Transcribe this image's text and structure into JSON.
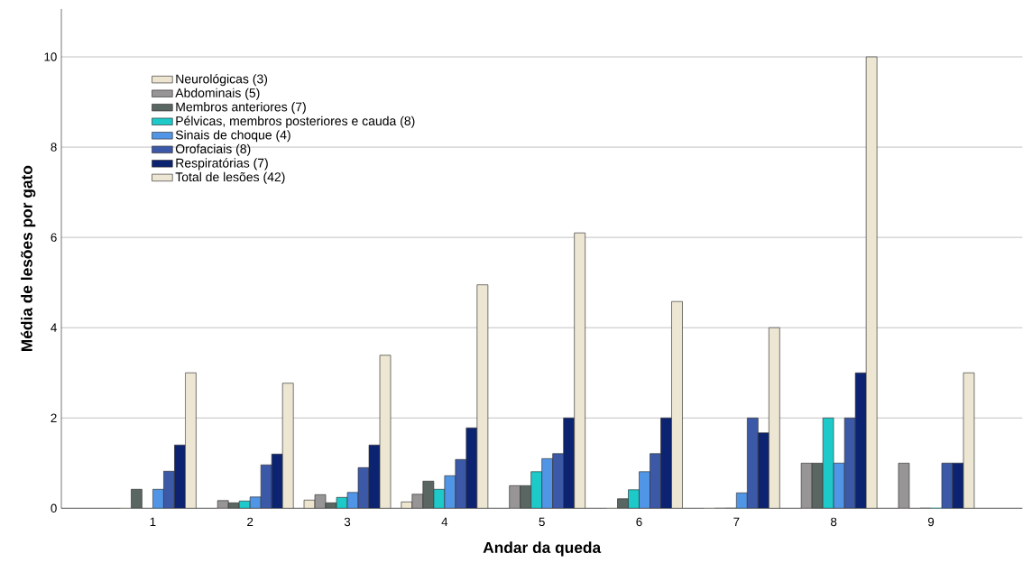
{
  "chart_data": {
    "type": "bar",
    "xlabel": "Andar da queda",
    "ylabel": "Média de lesões por gato",
    "categories": [
      "1",
      "2",
      "3",
      "4",
      "5",
      "6",
      "7",
      "8",
      "9"
    ],
    "series": [
      {
        "name": "Neurológicas (3)",
        "color": "#ede5cf",
        "values": [
          0,
          0,
          0.18,
          0.14,
          0,
          0,
          0,
          0,
          0
        ]
      },
      {
        "name": "Abdominais (5)",
        "color": "#979595",
        "values": [
          0,
          0.17,
          0.3,
          0.31,
          0.5,
          0,
          0,
          1,
          1
        ]
      },
      {
        "name": "Membros anteriores (7)",
        "color": "#5a6662",
        "values": [
          0.42,
          0.12,
          0.12,
          0.6,
          0.5,
          0.21,
          0,
          1,
          0
        ]
      },
      {
        "name": "Pélvicas, membros posteriores e cauda (8)",
        "color": "#1dc9c9",
        "values": [
          0,
          0.16,
          0.24,
          0.42,
          0.81,
          0.41,
          0,
          2,
          0
        ]
      },
      {
        "name": "Sinais de choque (4)",
        "color": "#5195e6",
        "values": [
          0.42,
          0.25,
          0.35,
          0.72,
          1.1,
          0.81,
          0.34,
          1,
          0
        ]
      },
      {
        "name": "Orofaciais (8)",
        "color": "#3c59a8",
        "values": [
          0.82,
          0.96,
          0.9,
          1.08,
          1.21,
          1.21,
          2,
          2,
          1
        ]
      },
      {
        "name": "Respiratórias (7)",
        "color": "#0b2371",
        "values": [
          1.4,
          1.2,
          1.4,
          1.78,
          2,
          2,
          1.67,
          3,
          1
        ]
      },
      {
        "name": "Total de lesões (42)",
        "color": "#ece6d2",
        "values": [
          3,
          2.77,
          3.39,
          4.95,
          6.1,
          4.58,
          4,
          10,
          3
        ]
      }
    ],
    "ylim": [
      0,
      11.06
    ],
    "yticks": [
      0,
      2,
      4,
      6,
      8,
      10
    ],
    "grid": "y",
    "legend": "top left"
  }
}
